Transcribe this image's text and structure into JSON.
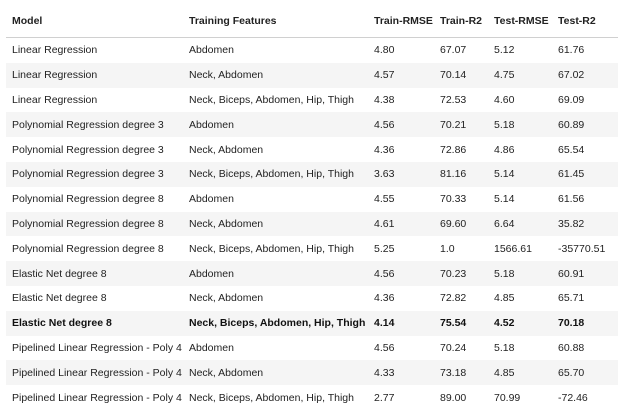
{
  "columns": [
    "Model",
    "Training Features",
    "Train-RMSE",
    "Train-R2",
    "Test-RMSE",
    "Test-R2"
  ],
  "rows": [
    {
      "model": "Linear Regression",
      "features": "Abdomen",
      "train_rmse": "4.80",
      "train_r2": "67.07",
      "test_rmse": "5.12",
      "test_r2": "61.76",
      "bold": false
    },
    {
      "model": "Linear Regression",
      "features": "Neck, Abdomen",
      "train_rmse": "4.57",
      "train_r2": "70.14",
      "test_rmse": "4.75",
      "test_r2": "67.02",
      "bold": false
    },
    {
      "model": "Linear Regression",
      "features": "Neck, Biceps, Abdomen, Hip, Thigh",
      "train_rmse": "4.38",
      "train_r2": "72.53",
      "test_rmse": "4.60",
      "test_r2": "69.09",
      "bold": false
    },
    {
      "model": "Polynomial Regression degree 3",
      "features": "Abdomen",
      "train_rmse": "4.56",
      "train_r2": "70.21",
      "test_rmse": "5.18",
      "test_r2": "60.89",
      "bold": false
    },
    {
      "model": "Polynomial Regression degree 3",
      "features": "Neck, Abdomen",
      "train_rmse": "4.36",
      "train_r2": "72.86",
      "test_rmse": "4.86",
      "test_r2": "65.54",
      "bold": false
    },
    {
      "model": "Polynomial Regression degree 3",
      "features": "Neck, Biceps, Abdomen, Hip, Thigh",
      "train_rmse": "3.63",
      "train_r2": "81.16",
      "test_rmse": "5.14",
      "test_r2": "61.45",
      "bold": false
    },
    {
      "model": "Polynomial Regression degree 8",
      "features": "Abdomen",
      "train_rmse": "4.55",
      "train_r2": "70.33",
      "test_rmse": "5.14",
      "test_r2": "61.56",
      "bold": false
    },
    {
      "model": "Polynomial Regression degree 8",
      "features": "Neck, Abdomen",
      "train_rmse": "4.61",
      "train_r2": "69.60",
      "test_rmse": "6.64",
      "test_r2": "35.82",
      "bold": false
    },
    {
      "model": "Polynomial Regression degree 8",
      "features": "Neck, Biceps, Abdomen, Hip, Thigh",
      "train_rmse": "5.25",
      "train_r2": "1.0",
      "test_rmse": "1566.61",
      "test_r2": "-35770.51",
      "bold": false
    },
    {
      "model": "Elastic Net degree 8",
      "features": "Abdomen",
      "train_rmse": "4.56",
      "train_r2": "70.23",
      "test_rmse": "5.18",
      "test_r2": "60.91",
      "bold": false
    },
    {
      "model": "Elastic Net degree 8",
      "features": "Neck, Abdomen",
      "train_rmse": "4.36",
      "train_r2": "72.82",
      "test_rmse": "4.85",
      "test_r2": "65.71",
      "bold": false
    },
    {
      "model": "Elastic Net degree 8",
      "features": "Neck, Biceps, Abdomen, Hip, Thigh",
      "train_rmse": "4.14",
      "train_r2": "75.54",
      "test_rmse": "4.52",
      "test_r2": "70.18",
      "bold": true
    },
    {
      "model": "Pipelined Linear Regression - Poly 4",
      "features": "Abdomen",
      "train_rmse": "4.56",
      "train_r2": "70.24",
      "test_rmse": "5.18",
      "test_r2": "60.88",
      "bold": false
    },
    {
      "model": "Pipelined Linear Regression - Poly 4",
      "features": "Neck, Abdomen",
      "train_rmse": "4.33",
      "train_r2": "73.18",
      "test_rmse": "4.85",
      "test_r2": "65.70",
      "bold": false
    },
    {
      "model": "Pipelined Linear Regression - Poly 4",
      "features": "Neck, Biceps, Abdomen, Hip, Thigh",
      "train_rmse": "2.77",
      "train_r2": "89.00",
      "test_rmse": "70.99",
      "test_r2": "-72.46",
      "bold": false
    }
  ]
}
